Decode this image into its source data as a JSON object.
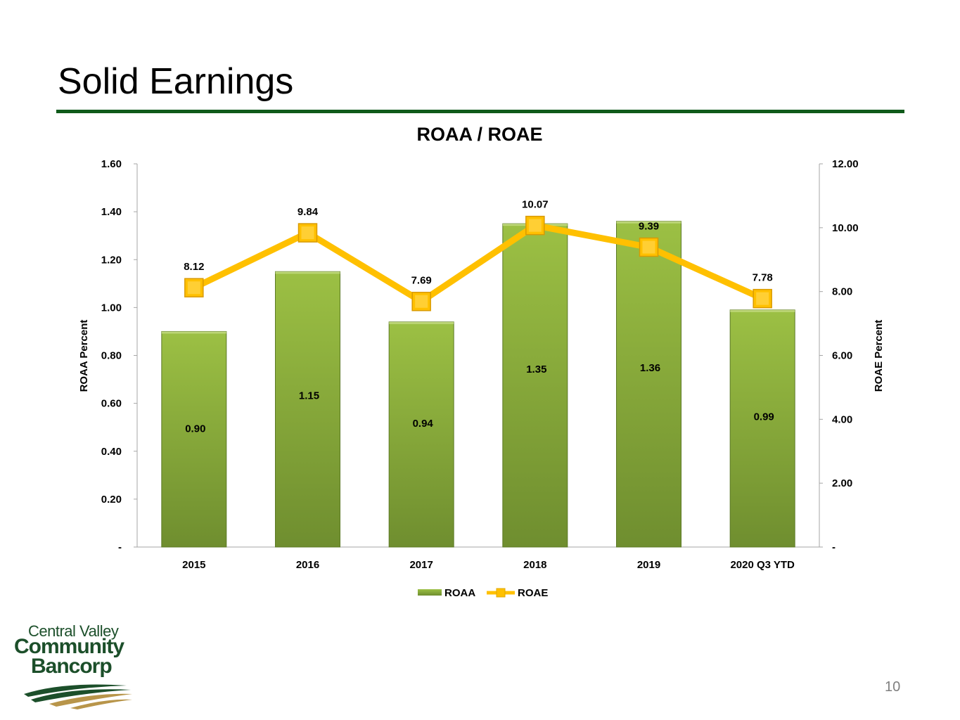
{
  "slide": {
    "title": "Solid Earnings",
    "page_number": "10"
  },
  "logo": {
    "line1": "Central Valley",
    "line2": "Community",
    "line3": "Bancorp"
  },
  "colors": {
    "bar": "#8fb23e",
    "bar_dark": "#6d8b2e",
    "line": "#ffc000",
    "rule": "#0f5a1a"
  },
  "chart_data": {
    "type": "bar",
    "title": "ROAA / ROAE",
    "categories": [
      "2015",
      "2016",
      "2017",
      "2018",
      "2019",
      "2020 Q3 YTD"
    ],
    "series": [
      {
        "name": "ROAA",
        "type": "bar",
        "axis": "left",
        "values": [
          0.9,
          1.15,
          0.94,
          1.35,
          1.36,
          0.99
        ],
        "labels": [
          "0.90",
          "1.15",
          "0.94",
          "1.35",
          "1.36",
          "0.99"
        ]
      },
      {
        "name": "ROAE",
        "type": "line",
        "axis": "right",
        "values": [
          8.12,
          9.84,
          7.69,
          10.07,
          9.39,
          7.78
        ],
        "labels": [
          "8.12",
          "9.84",
          "7.69",
          "10.07",
          "9.39",
          "7.78"
        ]
      }
    ],
    "y_left": {
      "label": "ROAA Percent",
      "range": [
        0,
        1.6
      ],
      "ticks": [
        "-",
        "0.20",
        "0.40",
        "0.60",
        "0.80",
        "1.00",
        "1.20",
        "1.40",
        "1.60"
      ]
    },
    "y_right": {
      "label": "ROAE Percent",
      "range": [
        0,
        12
      ],
      "ticks": [
        "-",
        "2.00",
        "4.00",
        "6.00",
        "8.00",
        "10.00",
        "12.00"
      ]
    },
    "legend": {
      "position": "bottom",
      "entries": [
        "ROAA",
        "ROAE"
      ]
    },
    "grid": false
  }
}
